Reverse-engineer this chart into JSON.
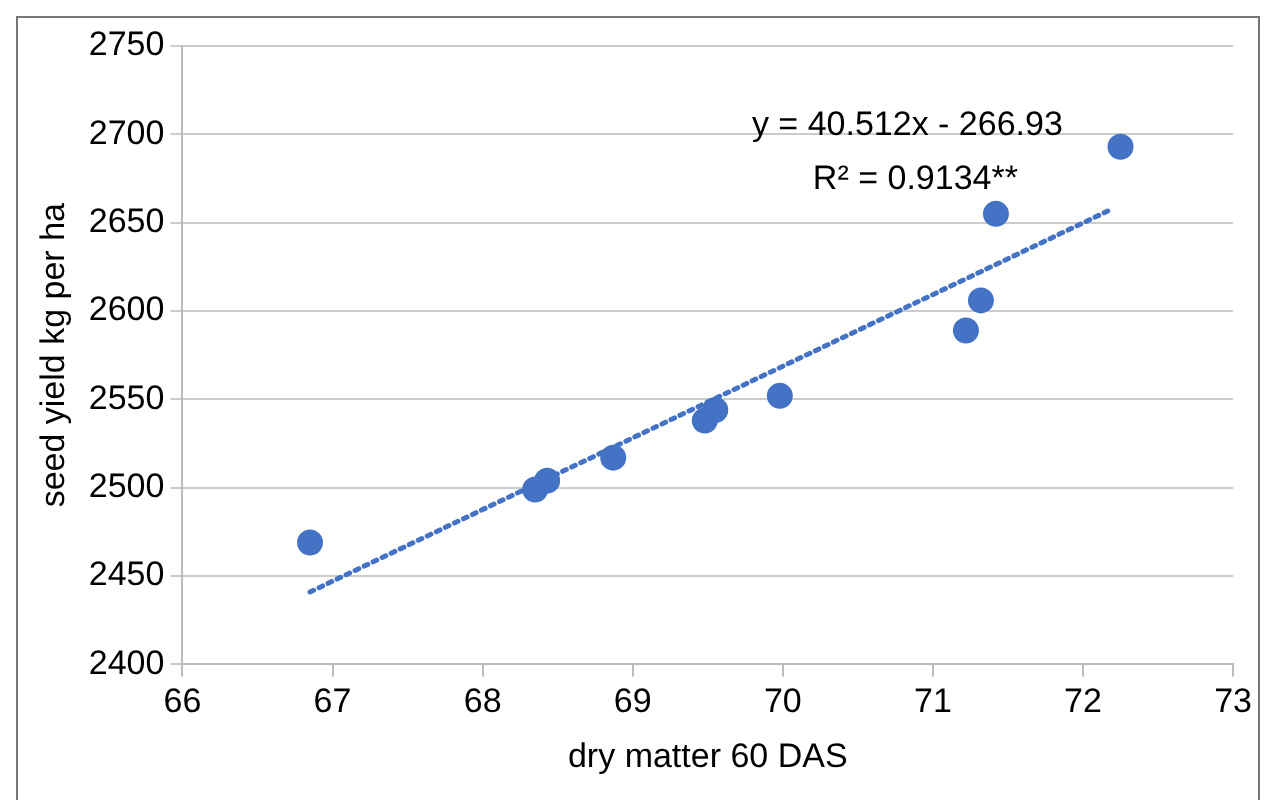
{
  "chart_data": {
    "type": "scatter",
    "xlabel": "dry matter 60 DAS",
    "ylabel": "seed yield kg per ha",
    "annotations": [
      "y = 40.512x - 266.93",
      "R² = 0.9134**"
    ],
    "series": [
      {
        "type": "scatter",
        "color": "#4472c4",
        "marker": "circle",
        "x": [
          66.85,
          68.35,
          68.43,
          68.87,
          69.48,
          69.55,
          69.98,
          71.22,
          71.32,
          71.42,
          72.25
        ],
        "values": [
          2469,
          2499,
          2504,
          2517,
          2538,
          2544,
          2552,
          2589,
          2606,
          2655,
          2693
        ]
      },
      {
        "type": "line",
        "color": "#4472c4",
        "line_style": "dotted",
        "marker": "none",
        "x": [
          66.85,
          72.2
        ],
        "values": [
          2441,
          2658
        ]
      }
    ],
    "xlim": [
      66,
      73
    ],
    "xticks": [
      66,
      67,
      68,
      69,
      70,
      71,
      72,
      73
    ],
    "ylim": [
      2400,
      2750
    ],
    "yticks": [
      2400,
      2450,
      2500,
      2550,
      2600,
      2650,
      2700,
      2750
    ],
    "grid": "y",
    "legend": false
  }
}
